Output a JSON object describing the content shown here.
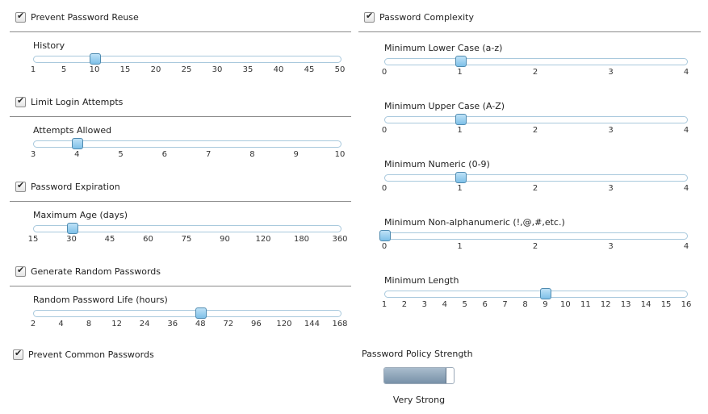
{
  "left_sections": [
    {
      "header": "Prevent Password Reuse",
      "checked": true,
      "slider": {
        "label": "History",
        "ticks": [
          "1",
          "5",
          "10",
          "15",
          "20",
          "25",
          "30",
          "35",
          "40",
          "45",
          "50"
        ],
        "selected_index": 2
      }
    },
    {
      "header": "Limit Login Attempts",
      "checked": true,
      "slider": {
        "label": "Attempts Allowed",
        "ticks": [
          "3",
          "4",
          "5",
          "6",
          "7",
          "8",
          "9",
          "10"
        ],
        "selected_index": 1
      }
    },
    {
      "header": "Password Expiration",
      "checked": true,
      "slider": {
        "label": "Maximum Age (days)",
        "ticks": [
          "15",
          "30",
          "45",
          "60",
          "75",
          "90",
          "120",
          "180",
          "360"
        ],
        "selected_index": 1
      }
    },
    {
      "header": "Generate Random Passwords",
      "checked": true,
      "slider": {
        "label": "Random Password Life (hours)",
        "ticks": [
          "2",
          "4",
          "8",
          "12",
          "24",
          "36",
          "48",
          "72",
          "96",
          "120",
          "144",
          "168"
        ],
        "selected_index": 6
      }
    }
  ],
  "common_passwords": {
    "header": "Prevent Common Passwords",
    "checked": true
  },
  "complexity": {
    "header": "Password Complexity",
    "checked": true,
    "sliders": [
      {
        "label": "Minimum Lower Case (a-z)",
        "ticks": [
          "0",
          "1",
          "2",
          "3",
          "4"
        ],
        "selected_index": 1
      },
      {
        "label": "Minimum Upper Case (A-Z)",
        "ticks": [
          "0",
          "1",
          "2",
          "3",
          "4"
        ],
        "selected_index": 1
      },
      {
        "label": "Minimum Numeric (0-9)",
        "ticks": [
          "0",
          "1",
          "2",
          "3",
          "4"
        ],
        "selected_index": 1
      },
      {
        "label": "Minimum Non-alphanumeric (!,@,#,etc.)",
        "ticks": [
          "0",
          "1",
          "2",
          "3",
          "4"
        ],
        "selected_index": 0
      },
      {
        "label": "Minimum Length",
        "ticks": [
          "1",
          "2",
          "3",
          "4",
          "5",
          "6",
          "7",
          "8",
          "9",
          "10",
          "11",
          "12",
          "13",
          "14",
          "15",
          "16"
        ],
        "selected_index": 8
      }
    ]
  },
  "strength": {
    "title": "Password Policy Strength",
    "value_text": "Very Strong",
    "fill_fraction": 0.88
  },
  "colors": {
    "track_border": "#a9c9dd",
    "thumb": "#7ec0e8",
    "strength_fill": "#7891a8"
  }
}
